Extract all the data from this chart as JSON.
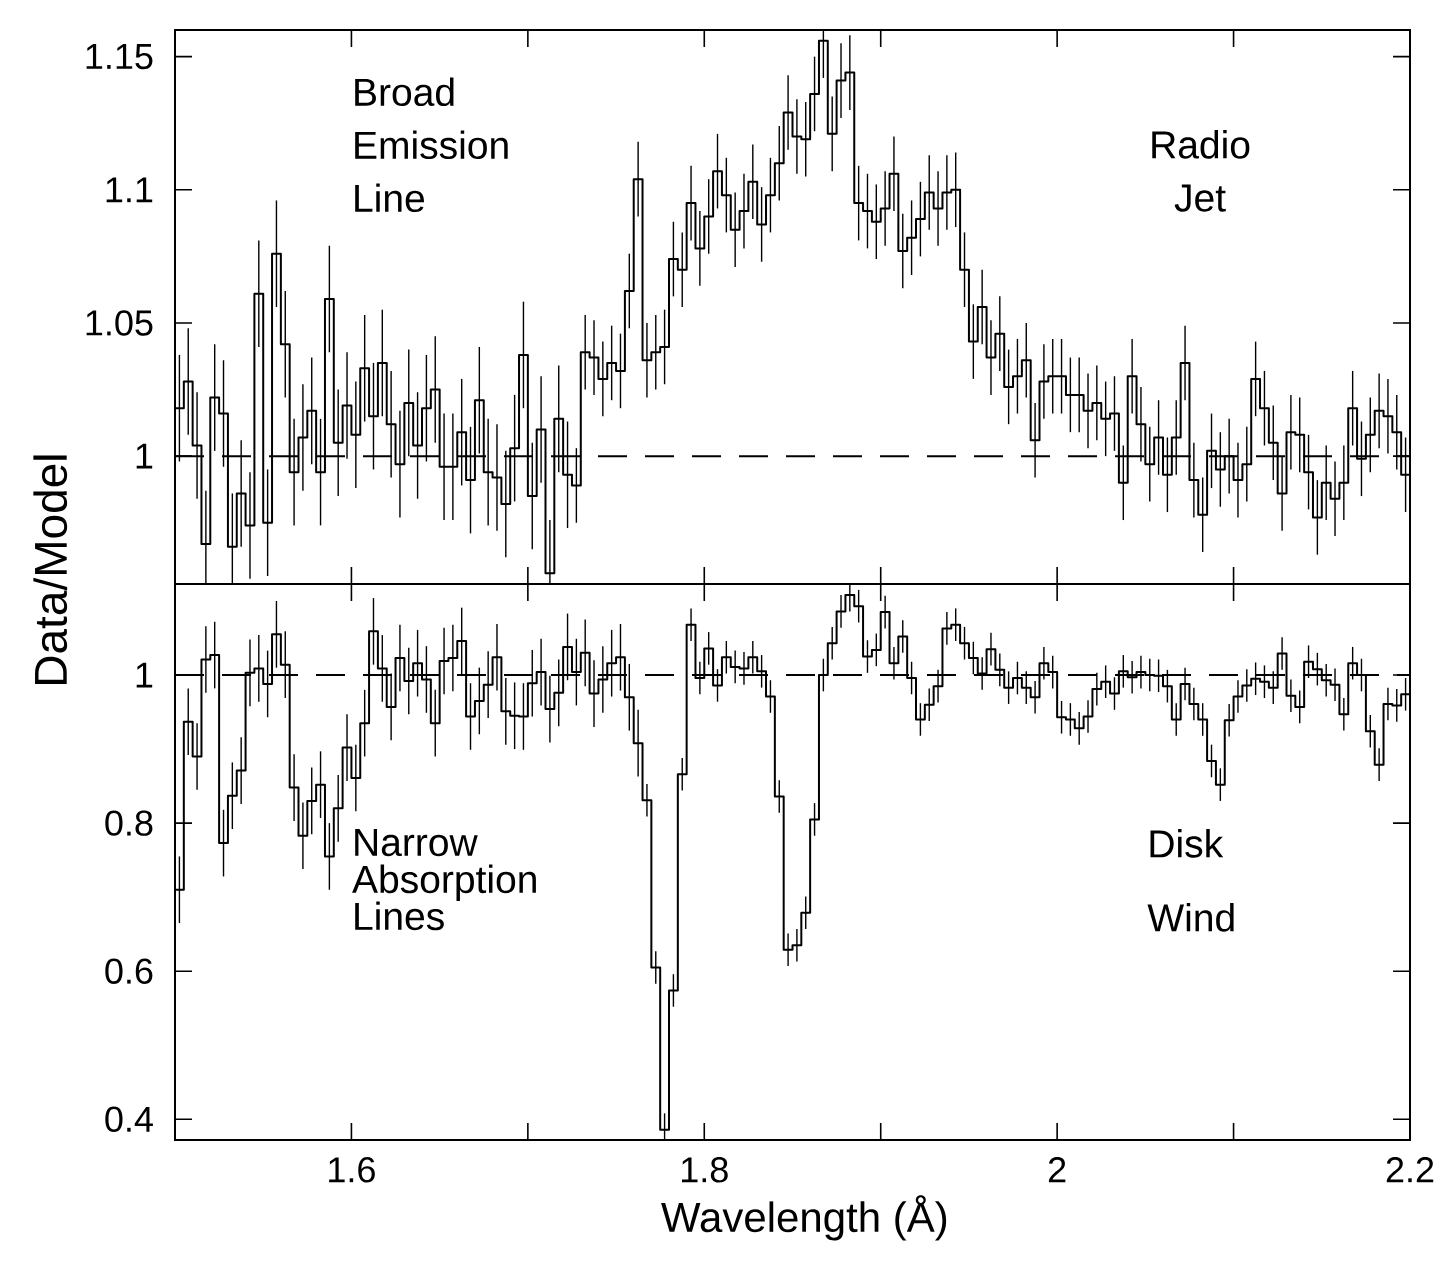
{
  "chart_data": [
    {
      "type": "step",
      "color": "#000000",
      "tick_labels": "y",
      "xlim": [
        1.5,
        2.2
      ],
      "ylim": [
        0.952,
        1.16
      ],
      "xticks": [
        1.6,
        1.8,
        2,
        2.2
      ],
      "yticks": [
        1,
        1.05,
        1.1,
        1.15
      ],
      "ref_lines": [
        {
          "axis": "y",
          "value": 1,
          "line_style": "dashed"
        }
      ],
      "annotations": [
        "Broad Emission Line",
        "Radio Jet"
      ],
      "x": [
        1.5025,
        1.5075,
        1.5125,
        1.5175,
        1.5225,
        1.5275,
        1.5325,
        1.5375,
        1.5425,
        1.5475,
        1.5525,
        1.5575,
        1.5625,
        1.5675,
        1.5725,
        1.5775,
        1.5825,
        1.5875,
        1.5925,
        1.5975,
        1.6025,
        1.6075,
        1.6125,
        1.6175,
        1.6225,
        1.6275,
        1.6325,
        1.6375,
        1.6425,
        1.6475,
        1.6525,
        1.6575,
        1.6625,
        1.6675,
        1.6725,
        1.6775,
        1.6825,
        1.6875,
        1.6925,
        1.6975,
        1.7025,
        1.7075,
        1.7125,
        1.7175,
        1.7225,
        1.7275,
        1.7325,
        1.7375,
        1.7425,
        1.7475,
        1.7525,
        1.7575,
        1.7625,
        1.7675,
        1.7725,
        1.7775,
        1.7825,
        1.7875,
        1.7925,
        1.7975,
        1.8025,
        1.8075,
        1.8125,
        1.8175,
        1.8225,
        1.8275,
        1.8325,
        1.8375,
        1.8425,
        1.8475,
        1.8525,
        1.8575,
        1.8625,
        1.8675,
        1.8725,
        1.8775,
        1.8825,
        1.8875,
        1.8925,
        1.8975,
        1.9025,
        1.9075,
        1.9125,
        1.9175,
        1.9225,
        1.9275,
        1.9325,
        1.9375,
        1.9425,
        1.9475,
        1.9525,
        1.9575,
        1.9625,
        1.9675,
        1.9725,
        1.9775,
        1.9825,
        1.9875,
        1.9925,
        1.9975,
        2.0025,
        2.0075,
        2.0125,
        2.0175,
        2.0225,
        2.0275,
        2.0325,
        2.0375,
        2.0425,
        2.0475,
        2.0525,
        2.0575,
        2.0625,
        2.0675,
        2.0725,
        2.0775,
        2.0825,
        2.0875,
        2.0925,
        2.0975,
        2.1025,
        2.1075,
        2.1125,
        2.1175,
        2.1225,
        2.1275,
        2.1325,
        2.1375,
        2.1425,
        2.1475,
        2.1525,
        2.1575,
        2.1625,
        2.1675,
        2.1725,
        2.1775,
        2.1825,
        2.1875,
        2.1925,
        2.1975
      ],
      "values": [
        1.018,
        1.028,
        1.004,
        0.967,
        1.022,
        1.016,
        0.966,
        0.986,
        0.974,
        1.061,
        0.975,
        1.076,
        1.042,
        0.994,
        1.007,
        1.017,
        0.994,
        1.059,
        1.005,
        1.019,
        1.008,
        1.033,
        1.015,
        1.035,
        1.012,
        0.997,
        1.02,
        1.004,
        1.018,
        1.025,
        0.996,
        0.996,
        1.009,
        0.991,
        1.021,
        0.994,
        0.992,
        0.982,
        1.003,
        1.038,
        0.985,
        1.01,
        0.956,
        1.014,
        0.993,
        0.989,
        1.039,
        1.037,
        1.029,
        1.035,
        1.032,
        1.062,
        1.104,
        1.036,
        1.039,
        1.041,
        1.074,
        1.07,
        1.095,
        1.078,
        1.09,
        1.107,
        1.098,
        1.085,
        1.092,
        1.103,
        1.087,
        1.098,
        1.11,
        1.129,
        1.12,
        1.119,
        1.136,
        1.156,
        1.121,
        1.141,
        1.144,
        1.095,
        1.092,
        1.088,
        1.093,
        1.106,
        1.077,
        1.082,
        1.089,
        1.099,
        1.093,
        1.099,
        1.1,
        1.07,
        1.043,
        1.056,
        1.037,
        1.046,
        1.026,
        1.03,
        1.036,
        1.006,
        1.028,
        1.03,
        1.03,
        1.023,
        1.023,
        1.017,
        1.02,
        1.014,
        1.016,
        0.99,
        1.03,
        1.012,
        0.997,
        1.007,
        0.993,
        1.007,
        1.035,
        0.991,
        0.978,
        1.002,
        0.995,
        1.0,
        0.991,
        0.997,
        1.029,
        1.018,
        1.005,
        0.986,
        1.009,
        1.008,
        0.994,
        0.977,
        0.99,
        0.984,
        0.99,
        1.018,
        0.999,
        1.008,
        1.017,
        1.015,
        1.009,
        0.993
      ],
      "errors": [
        0.02,
        0.02,
        0.02,
        [
          0.952,
          0.987
        ],
        0.02,
        0.02,
        [
          0.952,
          0.986
        ],
        0.02,
        0.02,
        0.02,
        0.02,
        0.02,
        0.02,
        0.02,
        0.02,
        0.02,
        0.02,
        0.02,
        0.02,
        0.02,
        0.02,
        0.02,
        0.02,
        0.02,
        0.02,
        0.02,
        0.02,
        0.02,
        0.02,
        0.02,
        0.02,
        0.02,
        0.02,
        0.02,
        0.02,
        0.02,
        0.02,
        0.02,
        0.02,
        0.02,
        0.02,
        0.02,
        [
          0.952,
          0.976
        ],
        0.02,
        0.02,
        0.014,
        0.014,
        0.014,
        0.014,
        0.014,
        0.014,
        0.014,
        0.014,
        0.014,
        0.014,
        0.014,
        0.014,
        0.014,
        0.014,
        0.014,
        0.014,
        0.014,
        0.014,
        0.014,
        0.014,
        0.014,
        0.014,
        0.014,
        0.014,
        0.014,
        0.014,
        0.014,
        0.014,
        [
          1.142,
          1.16
        ],
        0.014,
        0.014,
        0.014,
        0.014,
        0.014,
        0.014,
        0.014,
        0.014,
        0.014,
        0.014,
        0.014,
        0.014,
        0.014,
        0.014,
        0.014,
        0.014,
        0.014,
        0.014,
        0.014,
        0.014,
        0.014,
        0.014,
        0.014,
        0.014,
        0.014,
        0.014,
        0.014,
        0.014,
        0.014,
        0.014,
        0.014,
        0.014,
        0.014,
        0.014,
        0.014,
        0.014,
        0.014,
        0.014,
        0.014,
        0.014,
        0.014,
        0.014,
        0.014,
        0.014,
        0.014,
        0.014,
        0.014,
        0.014,
        0.014,
        0.014,
        0.014,
        0.014,
        0.014,
        0.014,
        0.014,
        0.014,
        0.014,
        0.014,
        0.014,
        0.014,
        0.014,
        0.014,
        0.014,
        0.014,
        0.014,
        0.014
      ]
    },
    {
      "type": "step",
      "color": "#000000",
      "xlabel": "Wavelength (Å)",
      "ylabel": "Data/Model",
      "xlim": [
        1.5,
        2.2
      ],
      "ylim": [
        0.372,
        1.123
      ],
      "xticks": [
        1.6,
        1.8,
        2,
        2.2
      ],
      "yticks": [
        0.4,
        0.6,
        0.8,
        1
      ],
      "ref_lines": [
        {
          "axis": "y",
          "value": 1,
          "line_style": "dashed"
        }
      ],
      "annotations": [
        "Narrow Absorption Lines",
        "Disk Wind"
      ],
      "x": [
        1.5025,
        1.5075,
        1.5125,
        1.5175,
        1.5225,
        1.5275,
        1.5325,
        1.5375,
        1.5425,
        1.5475,
        1.5525,
        1.5575,
        1.5625,
        1.5675,
        1.5725,
        1.5775,
        1.5825,
        1.5875,
        1.5925,
        1.5975,
        1.6025,
        1.6075,
        1.6125,
        1.6175,
        1.6225,
        1.6275,
        1.6325,
        1.6375,
        1.6425,
        1.6475,
        1.6525,
        1.6575,
        1.6625,
        1.6675,
        1.6725,
        1.6775,
        1.6825,
        1.6875,
        1.6925,
        1.6975,
        1.7025,
        1.7075,
        1.7125,
        1.7175,
        1.7225,
        1.7275,
        1.7325,
        1.7375,
        1.7425,
        1.7475,
        1.7525,
        1.7575,
        1.7625,
        1.7675,
        1.7725,
        1.7775,
        1.7825,
        1.7875,
        1.7925,
        1.7975,
        1.8025,
        1.8075,
        1.8125,
        1.8175,
        1.8225,
        1.8275,
        1.8325,
        1.8375,
        1.8425,
        1.8475,
        1.8525,
        1.8575,
        1.8625,
        1.8675,
        1.8725,
        1.8775,
        1.8825,
        1.8875,
        1.8925,
        1.8975,
        1.9025,
        1.9075,
        1.9125,
        1.9175,
        1.9225,
        1.9275,
        1.9325,
        1.9375,
        1.9425,
        1.9475,
        1.9525,
        1.9575,
        1.9625,
        1.9675,
        1.9725,
        1.9775,
        1.9825,
        1.9875,
        1.9925,
        1.9975,
        2.0025,
        2.0075,
        2.0125,
        2.0175,
        2.0225,
        2.0275,
        2.0325,
        2.0375,
        2.0425,
        2.0475,
        2.0525,
        2.0575,
        2.0625,
        2.0675,
        2.0725,
        2.0775,
        2.0825,
        2.0875,
        2.0925,
        2.0975,
        2.1025,
        2.1075,
        2.1125,
        2.1175,
        2.1225,
        2.1275,
        2.1325,
        2.1375,
        2.1425,
        2.1475,
        2.1525,
        2.1575,
        2.1625,
        2.1675,
        2.1725,
        2.1775,
        2.1825,
        2.1875,
        2.1925,
        2.1975
      ],
      "values": [
        0.71,
        0.937,
        0.89,
        1.021,
        1.027,
        0.773,
        0.837,
        0.871,
        1.003,
        1.009,
        0.988,
        1.055,
        1.014,
        0.848,
        0.783,
        0.83,
        0.852,
        0.755,
        0.82,
        0.902,
        0.861,
        0.935,
        1.059,
        1.009,
        0.957,
        1.023,
        0.992,
        1.016,
        0.994,
        0.935,
        1.019,
        1.023,
        1.046,
        0.944,
        0.965,
        0.987,
        1.024,
        0.951,
        0.945,
        0.944,
        0.989,
        1.004,
        0.954,
        0.976,
        1.038,
        1.004,
        1.03,
        0.975,
        0.994,
        1.016,
        1.024,
        0.97,
        0.908,
        0.831,
        0.605,
        0.386,
        0.574,
        0.866,
        1.068,
        0.996,
        1.036,
        0.986,
        1.024,
        1.011,
        1.009,
        1.024,
        1.005,
        0.971,
        0.836,
        0.629,
        0.635,
        0.679,
        0.805,
        1.0,
        1.043,
        1.086,
        1.108,
        1.093,
        1.025,
        1.034,
        1.085,
        1.016,
        1.052,
        0.996,
        0.94,
        0.96,
        0.985,
        1.063,
        1.068,
        1.043,
        1.023,
        1.002,
        1.035,
        1.007,
        0.983,
        0.996,
        0.983,
        0.97,
        1.016,
        1.004,
        0.943,
        0.94,
        0.928,
        0.944,
        0.981,
        0.991,
        0.975,
        1.005,
        0.997,
        1.004,
        1.0,
        0.999,
        0.985,
        0.94,
        0.988,
        0.961,
        0.94,
        0.884,
        0.852,
        0.939,
        0.971,
        0.986,
        0.995,
        0.991,
        0.983,
        1.029,
        0.972,
        0.957,
        1.018,
        1.008,
        0.993,
        0.987,
        0.947,
        1.016,
        1.0,
        0.924,
        0.879,
        0.961,
        0.959,
        0.974
      ],
      "errors": [
        0.045,
        0.045,
        0.045,
        0.045,
        0.045,
        0.045,
        0.045,
        0.045,
        0.045,
        0.045,
        0.045,
        0.045,
        0.045,
        0.045,
        0.045,
        0.045,
        0.045,
        0.045,
        0.045,
        0.045,
        0.045,
        0.045,
        0.045,
        0.045,
        0.045,
        0.045,
        0.045,
        0.045,
        0.045,
        0.045,
        0.045,
        0.045,
        0.045,
        0.045,
        0.045,
        0.045,
        0.045,
        0.045,
        0.045,
        0.045,
        0.045,
        0.045,
        0.045,
        0.045,
        0.045,
        0.045,
        0.045,
        0.045,
        0.045,
        0.045,
        0.045,
        0.045,
        0.045,
        0.022,
        0.022,
        [
          0.372,
          0.408
        ],
        0.022,
        0.022,
        0.022,
        0.022,
        0.022,
        0.022,
        0.022,
        0.022,
        0.022,
        0.022,
        0.022,
        0.022,
        0.022,
        0.022,
        0.022,
        0.022,
        0.022,
        0.022,
        0.022,
        0.022,
        [
          1.086,
          1.123
        ],
        0.022,
        0.022,
        0.022,
        0.022,
        0.022,
        0.022,
        0.022,
        0.022,
        0.022,
        0.022,
        0.022,
        0.022,
        0.022,
        0.022,
        0.022,
        0.022,
        0.022,
        0.022,
        0.022,
        0.022,
        0.022,
        0.022,
        0.022,
        0.022,
        0.022,
        0.022,
        0.022,
        0.022,
        0.022,
        0.022,
        0.022,
        0.022,
        0.022,
        0.022,
        0.022,
        0.022,
        0.022,
        0.022,
        0.022,
        0.022,
        0.022,
        0.022,
        0.022,
        0.022,
        0.022,
        0.022,
        0.022,
        0.022,
        0.022,
        0.022,
        0.022,
        0.022,
        0.022,
        0.022,
        0.022,
        0.022,
        0.022,
        0.022,
        0.022,
        0.022,
        0.022,
        0.022,
        0.022
      ]
    }
  ]
}
